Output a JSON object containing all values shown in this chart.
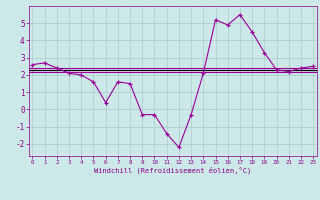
{
  "xlabel": "Windchill (Refroidissement éolien,°C)",
  "x_values": [
    0,
    1,
    2,
    3,
    4,
    5,
    6,
    7,
    8,
    9,
    10,
    11,
    12,
    13,
    14,
    15,
    16,
    17,
    18,
    19,
    20,
    21,
    22,
    23
  ],
  "line1_y": [
    2.6,
    2.7,
    2.4,
    2.1,
    2.0,
    1.6,
    0.4,
    1.6,
    1.5,
    -0.3,
    -0.3,
    -1.4,
    -2.2,
    -0.3,
    2.1,
    5.2,
    4.9,
    5.5,
    4.5,
    3.3,
    2.3,
    2.2,
    2.4,
    2.5
  ],
  "flat1_y": 2.4,
  "flat2_y": 2.3,
  "flat3_y": 2.2,
  "black_y": 2.3,
  "line_color": "#990099",
  "flat_color": "#990099",
  "black_color": "#000000",
  "bg_color": "#cce8e8",
  "grid_color": "#aacccc",
  "text_color": "#880088",
  "ylim": [
    -2.7,
    6.0
  ],
  "xlim": [
    -0.3,
    23.3
  ],
  "yticks": [
    -2,
    -1,
    0,
    1,
    2,
    3,
    4,
    5
  ],
  "xticks": [
    0,
    1,
    2,
    3,
    4,
    5,
    6,
    7,
    8,
    9,
    10,
    11,
    12,
    13,
    14,
    15,
    16,
    17,
    18,
    19,
    20,
    21,
    22,
    23
  ]
}
